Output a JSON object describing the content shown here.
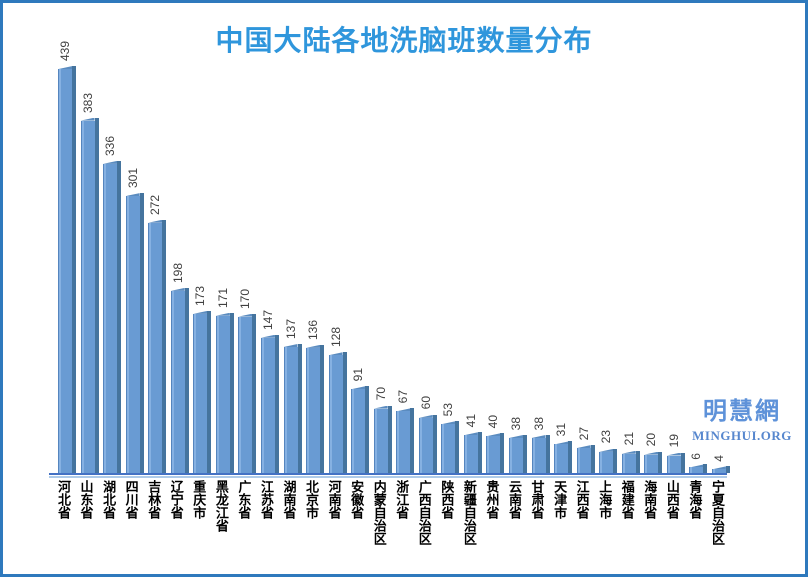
{
  "title": "中国大陆各地洗脑班数量分布",
  "watermark": {
    "cn": "明慧網",
    "en": "MINGHUI.ORG"
  },
  "colors": {
    "title_text": "#2f96dc",
    "bar_face": "#699bd3",
    "bar_side": "#45749e",
    "bar_highlight": "#86b1e2",
    "axis_line": "#4472c4",
    "axis_underline": "#aecbe9",
    "frame_border": "#2e79bd",
    "value_label": "#3f3f3f",
    "x_label": "#000000",
    "watermark_cn": "#5e92d9",
    "watermark_en": "#5787ce"
  },
  "chart_data": {
    "type": "bar",
    "title": "中国大陆各地洗脑班数量分布",
    "categories": [
      "河北省",
      "山东省",
      "湖北省",
      "四川省",
      "吉林省",
      "辽宁省",
      "重庆市",
      "黑龙江省",
      "广东省",
      "江苏省",
      "湖南省",
      "北京市",
      "河南省",
      "安徽省",
      "内蒙自治区",
      "浙江省",
      "广西自治区",
      "陕西省",
      "新疆自治区",
      "贵州省",
      "云南省",
      "甘肃省",
      "天津市",
      "江西省",
      "上海市",
      "福建省",
      "海南省",
      "山西省",
      "青海省",
      "宁夏自治区"
    ],
    "values": [
      439,
      383,
      336,
      301,
      272,
      198,
      173,
      171,
      170,
      147,
      137,
      136,
      128,
      91,
      70,
      67,
      60,
      53,
      41,
      40,
      38,
      38,
      31,
      27,
      23,
      21,
      20,
      19,
      6,
      4
    ],
    "xlabel": "",
    "ylabel": "",
    "ylim": [
      0,
      472
    ],
    "grid": false,
    "legend": false,
    "bar_style": "3d",
    "value_labels": "rotated-90-above-bars",
    "x_tick_orientation": "vertical-upright"
  }
}
